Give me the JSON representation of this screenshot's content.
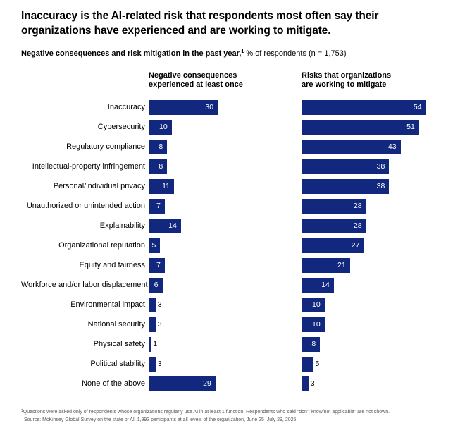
{
  "title": "Inaccuracy is the AI-related risk that respondents most often say their organizations have experienced and are working to mitigate.",
  "subtitle": {
    "bold": "Negative consequences and risk mitigation in the past year,",
    "superscript": "1",
    "regular": " % of respondents (n = 1,753)"
  },
  "columns": {
    "left_header_line1": "Negative consequences",
    "left_header_line2": "experienced at least once",
    "right_header_line1": "Risks that organizations",
    "right_header_line2": "are working to mitigate"
  },
  "chart_data": {
    "type": "bar",
    "orientation": "horizontal",
    "unit": "% of respondents",
    "n": "1,753",
    "xlim": [
      0,
      60
    ],
    "grid": false,
    "bar_color": "#12277e",
    "value_label_inside_color": "#ffffff",
    "value_label_outside_color": "#000000",
    "categories": [
      "Inaccuracy",
      "Cybersecurity",
      "Regulatory compliance",
      "Intellectual-property infringement",
      "Personal/individual privacy",
      "Unauthorized or unintended action",
      "Explainability",
      "Organizational reputation",
      "Equity and fairness",
      "Workforce and/or labor displacement",
      "Environmental impact",
      "National security",
      "Physical safety",
      "Political stability",
      "None of the above"
    ],
    "series": [
      {
        "name": "Negative consequences experienced at least once",
        "values": [
          30,
          10,
          8,
          8,
          11,
          7,
          14,
          5,
          7,
          6,
          3,
          3,
          1,
          3,
          29
        ],
        "label_position": [
          "inside",
          "inside",
          "inside",
          "inside",
          "inside",
          "inside",
          "inside",
          "inside",
          "inside",
          "inside",
          "outside",
          "outside",
          "outside",
          "outside",
          "inside"
        ]
      },
      {
        "name": "Risks that organizations are working to mitigate",
        "values": [
          54,
          51,
          43,
          38,
          38,
          28,
          28,
          27,
          21,
          14,
          10,
          10,
          8,
          5,
          3
        ],
        "label_position": [
          "inside",
          "inside",
          "inside",
          "inside",
          "inside",
          "inside",
          "inside",
          "inside",
          "inside",
          "inside",
          "inside",
          "inside",
          "inside",
          "outside",
          "outside"
        ]
      }
    ]
  },
  "footnote": {
    "superscript": "1",
    "note": "Questions were asked only of respondents whose organizations regularly use AI in at least 1 function. Respondents who said “don’t know/not applicable” are not shown.",
    "source": "Source: McKinsey Global Survey on the state of AI, 1,993 participants at all levels of the organization, June 25–July 29, 2025"
  }
}
